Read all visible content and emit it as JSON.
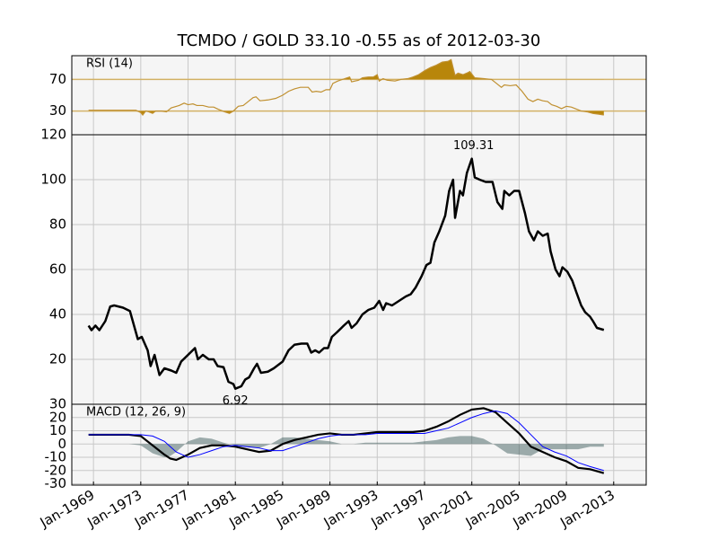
{
  "title": "TCMDO / GOLD 33.10 -0.55 as of 2012-03-30",
  "chart_data": [
    {
      "type": "rsi",
      "label": "RSI (14)",
      "ylim": [
        0,
        100
      ],
      "yticks": [
        30,
        70
      ],
      "threshold_color": "#d4b46c",
      "fill_color": "#b8860b",
      "x": [
        "1968-08",
        "1972-08",
        "1973-01",
        "1973-03",
        "1973-06",
        "1973-09",
        "1974-01",
        "1974-04",
        "1974-10",
        "1975-03",
        "1975-08",
        "1976-04",
        "1976-09",
        "1977-01",
        "1977-06",
        "1977-10",
        "1978-04",
        "1978-10",
        "1979-03",
        "1979-08",
        "1980-02",
        "1980-07",
        "1980-11",
        "1981-04",
        "1981-09",
        "1982-02",
        "1982-07",
        "1982-10",
        "1983-02",
        "1983-10",
        "1984-06",
        "1985-01",
        "1985-07",
        "1986-01",
        "1986-07",
        "1987-03",
        "1987-07",
        "1987-11",
        "1988-04",
        "1988-09",
        "1989-01",
        "1989-04",
        "1989-09",
        "1990-04",
        "1990-09",
        "1990-11",
        "1991-06",
        "1991-10",
        "1992-04",
        "1992-09",
        "1993-01",
        "1993-03",
        "1993-07",
        "1993-11",
        "1994-07",
        "1995-01",
        "1995-08",
        "1996-01",
        "1996-07",
        "1997-01",
        "1997-07",
        "1998-01",
        "1998-07",
        "1999-01",
        "1999-04",
        "1999-08",
        "1999-11",
        "2000-04",
        "2000-08",
        "2000-11",
        "2001-04",
        "2002-01",
        "2002-09",
        "2003-02",
        "2003-07",
        "2003-10",
        "2004-04",
        "2004-10",
        "2005-04",
        "2005-10",
        "2006-03",
        "2006-08",
        "2007-01",
        "2007-06",
        "2007-10",
        "2008-03",
        "2008-08",
        "2009-01",
        "2009-06",
        "2009-10",
        "2010-04",
        "2010-10",
        "2011-04",
        "2011-10",
        "2012-03"
      ],
      "series": [
        {
          "color": "#c09030",
          "values": [
            31,
            31,
            28,
            25,
            30,
            29,
            27,
            30,
            30,
            29,
            34,
            37,
            40,
            38,
            39,
            37,
            37,
            35,
            35,
            32,
            29,
            27,
            30,
            36,
            37,
            42,
            47,
            48,
            43,
            44,
            46,
            50,
            55,
            58,
            60,
            60,
            54,
            55,
            54,
            57,
            57,
            65,
            68,
            71,
            73,
            67,
            69,
            72,
            73,
            73,
            76,
            68,
            71,
            69,
            68,
            70,
            71,
            73,
            76,
            81,
            85,
            88,
            92,
            93,
            95,
            75,
            78,
            76,
            78,
            80,
            72,
            71,
            70,
            65,
            60,
            63,
            62,
            63,
            55,
            45,
            42,
            45,
            43,
            42,
            38,
            36,
            33,
            36,
            35,
            33,
            30,
            29,
            27,
            26,
            25
          ]
        }
      ]
    },
    {
      "type": "line",
      "ylim": [
        0,
        120
      ],
      "yticks": [
        20,
        40,
        60,
        80,
        100,
        120
      ],
      "grid": true,
      "x": [
        "1968-08",
        "1968-11",
        "1969-03",
        "1969-07",
        "1970-01",
        "1970-06",
        "1970-10",
        "1971-07",
        "1972-02",
        "1972-10",
        "1973-02",
        "1973-08",
        "1973-11",
        "1974-03",
        "1974-08",
        "1975-01",
        "1975-08",
        "1976-01",
        "1976-06",
        "1977-01",
        "1977-08",
        "1977-11",
        "1978-04",
        "1978-10",
        "1979-03",
        "1979-07",
        "1980-01",
        "1980-06",
        "1980-11",
        "1981-01",
        "1981-07",
        "1981-11",
        "1982-03",
        "1982-08",
        "1982-11",
        "1983-03",
        "1983-10",
        "1984-04",
        "1985-01",
        "1985-07",
        "1986-01",
        "1986-08",
        "1987-02",
        "1987-06",
        "1987-10",
        "1988-02",
        "1988-07",
        "1988-11",
        "1989-03",
        "1989-08",
        "1990-03",
        "1990-08",
        "1990-11",
        "1991-04",
        "1991-10",
        "1992-04",
        "1992-10",
        "1993-03",
        "1993-07",
        "1993-10",
        "1994-04",
        "1994-11",
        "1995-06",
        "1995-11",
        "1996-04",
        "1996-10",
        "1997-03",
        "1997-07",
        "1997-11",
        "1998-04",
        "1998-10",
        "1999-02",
        "1999-06",
        "1999-08",
        "2000-01",
        "2000-04",
        "2000-08",
        "2001-01",
        "2001-04",
        "2001-09",
        "2002-03",
        "2002-10",
        "2003-03",
        "2003-08",
        "2003-10",
        "2004-03",
        "2004-08",
        "2005-01",
        "2005-07",
        "2005-11",
        "2006-04",
        "2006-08",
        "2007-01",
        "2007-06",
        "2007-09",
        "2008-02",
        "2008-06",
        "2008-09",
        "2009-02",
        "2009-07",
        "2009-11",
        "2010-04",
        "2010-08",
        "2011-01",
        "2011-04",
        "2011-08",
        "2012-03"
      ],
      "series": [
        {
          "color": "#000000",
          "values": [
            35,
            33,
            35,
            33,
            37,
            43.5,
            44,
            43,
            41.5,
            29,
            30,
            24,
            17,
            22,
            13,
            16,
            15,
            14,
            19,
            22,
            25,
            20,
            22,
            20,
            20,
            17,
            16.5,
            10,
            9,
            6.92,
            8,
            11,
            12,
            16,
            18,
            14,
            14.5,
            16,
            19,
            24,
            26.5,
            27,
            27,
            23,
            24,
            23,
            25,
            25,
            30,
            32,
            35,
            37,
            34,
            36,
            40,
            42,
            43,
            46,
            42,
            45,
            44,
            46,
            48,
            49,
            52,
            57,
            62,
            63,
            72,
            77,
            84,
            95,
            100,
            83,
            95,
            93,
            103,
            109.31,
            101,
            100,
            99,
            99,
            90,
            87,
            95,
            93,
            95,
            95,
            85,
            77,
            73,
            77,
            75,
            76,
            68,
            60,
            57,
            61,
            59,
            55,
            50,
            44,
            41,
            39,
            37,
            34,
            33.1
          ]
        }
      ],
      "annotations": [
        {
          "text": "109.31",
          "x": "2001-01",
          "y": 109.31
        },
        {
          "text": "6.92",
          "x": "1981-01",
          "y": 6.92
        }
      ]
    },
    {
      "type": "macd",
      "label": "MACD (12, 26, 9)",
      "ylim": [
        -31,
        30
      ],
      "yticks": [
        30,
        20,
        10,
        0,
        -10,
        -20,
        -30
      ],
      "grid": true,
      "xlim": [
        "1967-03",
        "2015-10"
      ],
      "xticks": [
        {
          "value": "1969-01",
          "label": "Jan-1969"
        },
        {
          "value": "1973-01",
          "label": "Jan-1973"
        },
        {
          "value": "1977-01",
          "label": "Jan-1977"
        },
        {
          "value": "1981-01",
          "label": "Jan-1981"
        },
        {
          "value": "1985-01",
          "label": "Jan-1985"
        },
        {
          "value": "1989-01",
          "label": "Jan-1989"
        },
        {
          "value": "1993-01",
          "label": "Jan-1993"
        },
        {
          "value": "1997-01",
          "label": "Jan-1997"
        },
        {
          "value": "2001-01",
          "label": "Jan-2001"
        },
        {
          "value": "2005-01",
          "label": "Jan-2005"
        },
        {
          "value": "2009-01",
          "label": "Jan-2009"
        },
        {
          "value": "2013-01",
          "label": "Jan-2013"
        }
      ],
      "x": [
        "1968-08",
        "1970-01",
        "1972-01",
        "1973-01",
        "1974-01",
        "1975-01",
        "1975-07",
        "1976-01",
        "1977-01",
        "1978-01",
        "1979-01",
        "1980-01",
        "1981-01",
        "1982-01",
        "1983-01",
        "1984-01",
        "1985-01",
        "1986-01",
        "1987-01",
        "1988-01",
        "1989-01",
        "1990-01",
        "1991-01",
        "1992-01",
        "1993-01",
        "1994-01",
        "1995-01",
        "1996-01",
        "1997-01",
        "1998-01",
        "1999-01",
        "2000-01",
        "2001-01",
        "2002-01",
        "2003-01",
        "2004-01",
        "2005-01",
        "2006-01",
        "2007-01",
        "2008-01",
        "2009-01",
        "2010-01",
        "2011-01",
        "2012-03"
      ],
      "series": [
        {
          "color": "#000000",
          "values": [
            7,
            7,
            7,
            6,
            -1,
            -8,
            -11,
            -12,
            -8,
            -3,
            -1,
            -1,
            -2,
            -4,
            -6,
            -5,
            0,
            3,
            5,
            7,
            8,
            7,
            7,
            8,
            9,
            9,
            9,
            9,
            10,
            13,
            17,
            22,
            26,
            27,
            24,
            16,
            8,
            -2,
            -6,
            -10,
            -13,
            -18,
            -19,
            -22
          ]
        },
        {
          "color": "#0000ff",
          "values": [
            7,
            7,
            7,
            7,
            6,
            2,
            -2,
            -6,
            -10,
            -8,
            -5,
            -2,
            -1,
            -2,
            -3,
            -5,
            -5,
            -2,
            1,
            4,
            6,
            7,
            7,
            7,
            8,
            8,
            8,
            8,
            8,
            10,
            12,
            16,
            20,
            23,
            25,
            23,
            16,
            7,
            -2,
            -6,
            -9,
            -14,
            -17,
            -20
          ]
        },
        {
          "color": "#2f4f4f",
          "fill_alpha": 0.45,
          "values": [
            0,
            0,
            0,
            -1,
            -7,
            -10,
            -9,
            -6,
            2,
            5,
            4,
            1,
            -1,
            -2,
            -3,
            0,
            5,
            5,
            4,
            3,
            2,
            0,
            0,
            1,
            1,
            1,
            1,
            1,
            2,
            3,
            5,
            6,
            6,
            4,
            -1,
            -7,
            -8,
            -9,
            -4,
            -4,
            -4,
            -4,
            -2,
            -2
          ]
        }
      ]
    }
  ]
}
